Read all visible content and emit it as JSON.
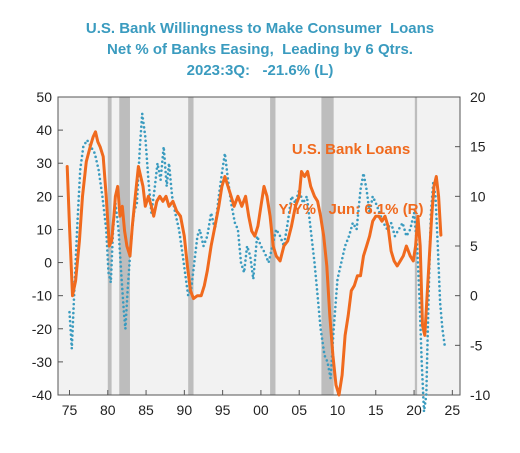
{
  "chart_data": {
    "type": "line",
    "title_lines": [
      "U.S. Bank Willingness to Make Consumer  Loans",
      "Net % of Banks Easing,  Leading by 6 Qtrs.",
      "2023:3Q:   -21.6% (L)"
    ],
    "annotation_lines": [
      "U.S. Bank Loans",
      "Y/Y%   Jun: 6.1% (R)"
    ],
    "x_tick_labels": [
      "75",
      "80",
      "85",
      "90",
      "95",
      "00",
      "05",
      "10",
      "15",
      "20",
      "25"
    ],
    "x_ticks": [
      1975,
      1980,
      1985,
      1990,
      1995,
      2000,
      2005,
      2010,
      2015,
      2020,
      2025
    ],
    "xlim": [
      1973.5,
      2026
    ],
    "y_left_ticks": [
      50,
      40,
      30,
      20,
      10,
      0,
      -10,
      -20,
      -30,
      -40
    ],
    "y_left_lim": [
      -40,
      50
    ],
    "y_right_ticks": [
      20,
      15,
      10,
      5,
      0,
      -5,
      -10
    ],
    "y_right_lim": [
      -10,
      20
    ],
    "recessions": [
      [
        1980.0,
        1980.5
      ],
      [
        1981.5,
        1982.9
      ],
      [
        1990.5,
        1991.2
      ],
      [
        2001.2,
        2001.9
      ],
      [
        2007.9,
        2009.5
      ],
      [
        2020.1,
        2020.4
      ]
    ],
    "colors": {
      "willingness": "#3a9bbf",
      "loans": "#f06a1e",
      "recession": "#bdbdbd",
      "title": "#3a9bbf"
    },
    "series": [
      {
        "axis": "left",
        "style": "dotted",
        "points": [
          [
            1975.0,
            -15
          ],
          [
            1975.3,
            -26
          ],
          [
            1975.6,
            -10
          ],
          [
            1976.0,
            10
          ],
          [
            1976.4,
            28
          ],
          [
            1976.8,
            35
          ],
          [
            1977.3,
            37
          ],
          [
            1977.8,
            35
          ],
          [
            1978.3,
            33
          ],
          [
            1978.8,
            28
          ],
          [
            1979.3,
            20
          ],
          [
            1979.8,
            10
          ],
          [
            1980.1,
            -3
          ],
          [
            1980.4,
            -6
          ],
          [
            1980.7,
            10
          ],
          [
            1981.0,
            18
          ],
          [
            1981.4,
            10
          ],
          [
            1981.8,
            -5
          ],
          [
            1982.1,
            -15
          ],
          [
            1982.3,
            -20
          ],
          [
            1982.6,
            -8
          ],
          [
            1983.0,
            5
          ],
          [
            1983.4,
            15
          ],
          [
            1983.8,
            18
          ],
          [
            1984.2,
            35
          ],
          [
            1984.5,
            45
          ],
          [
            1984.9,
            38
          ],
          [
            1985.3,
            25
          ],
          [
            1985.7,
            15
          ],
          [
            1986.1,
            22
          ],
          [
            1986.5,
            30
          ],
          [
            1986.9,
            25
          ],
          [
            1987.3,
            35
          ],
          [
            1987.7,
            23
          ],
          [
            1988.0,
            30
          ],
          [
            1988.4,
            20
          ],
          [
            1988.8,
            15
          ],
          [
            1989.3,
            10
          ],
          [
            1989.8,
            2
          ],
          [
            1990.2,
            -5
          ],
          [
            1990.5,
            -10
          ],
          [
            1990.9,
            -8
          ],
          [
            1991.3,
            0
          ],
          [
            1991.7,
            8
          ],
          [
            1992.0,
            10
          ],
          [
            1992.5,
            5
          ],
          [
            1993.0,
            8
          ],
          [
            1993.5,
            15
          ],
          [
            1994.0,
            10
          ],
          [
            1994.5,
            20
          ],
          [
            1994.9,
            27
          ],
          [
            1995.3,
            33
          ],
          [
            1995.7,
            25
          ],
          [
            1996.1,
            18
          ],
          [
            1996.6,
            12
          ],
          [
            1997.0,
            10
          ],
          [
            1997.4,
            0
          ],
          [
            1997.8,
            -3
          ],
          [
            1998.2,
            5
          ],
          [
            1998.6,
            2
          ],
          [
            1999.0,
            -5
          ],
          [
            1999.5,
            8
          ],
          [
            2000.0,
            5
          ],
          [
            2000.5,
            3
          ],
          [
            2001.0,
            0
          ],
          [
            2001.5,
            5
          ],
          [
            2002.0,
            10
          ],
          [
            2002.5,
            8
          ],
          [
            2003.0,
            5
          ],
          [
            2003.5,
            12
          ],
          [
            2004.0,
            20
          ],
          [
            2004.5,
            18
          ],
          [
            2005.0,
            22
          ],
          [
            2005.5,
            18
          ],
          [
            2006.0,
            20
          ],
          [
            2006.5,
            10
          ],
          [
            2007.0,
            0
          ],
          [
            2007.4,
            -10
          ],
          [
            2007.8,
            -20
          ],
          [
            2008.3,
            -28
          ],
          [
            2008.7,
            -30
          ],
          [
            2009.1,
            -35
          ],
          [
            2009.5,
            -20
          ],
          [
            2010.0,
            -5
          ],
          [
            2010.5,
            0
          ],
          [
            2011.0,
            5
          ],
          [
            2011.5,
            8
          ],
          [
            2012.0,
            12
          ],
          [
            2012.5,
            10
          ],
          [
            2013.0,
            22
          ],
          [
            2013.4,
            27
          ],
          [
            2013.8,
            22
          ],
          [
            2014.2,
            15
          ],
          [
            2014.6,
            20
          ],
          [
            2015.0,
            18
          ],
          [
            2015.5,
            15
          ],
          [
            2016.0,
            12
          ],
          [
            2016.5,
            10
          ],
          [
            2017.0,
            12
          ],
          [
            2017.5,
            8
          ],
          [
            2018.0,
            10
          ],
          [
            2018.5,
            12
          ],
          [
            2019.0,
            8
          ],
          [
            2019.5,
            10
          ],
          [
            2020.0,
            15
          ],
          [
            2020.4,
            5
          ],
          [
            2020.7,
            -10
          ],
          [
            2021.0,
            -30
          ],
          [
            2021.3,
            -45
          ],
          [
            2021.6,
            -40
          ],
          [
            2021.9,
            -10
          ],
          [
            2022.2,
            15
          ],
          [
            2022.5,
            24
          ],
          [
            2022.8,
            20
          ],
          [
            2023.1,
            5
          ],
          [
            2023.4,
            -12
          ],
          [
            2023.7,
            -20
          ],
          [
            2024.0,
            -25
          ]
        ]
      },
      {
        "axis": "right",
        "style": "solid",
        "points": [
          [
            1974.7,
            13
          ],
          [
            1975.0,
            7
          ],
          [
            1975.4,
            0
          ],
          [
            1975.8,
            1.5
          ],
          [
            1976.3,
            5.5
          ],
          [
            1976.7,
            10
          ],
          [
            1977.2,
            13.5
          ],
          [
            1977.7,
            15
          ],
          [
            1978.1,
            16
          ],
          [
            1978.4,
            16.5
          ],
          [
            1978.7,
            15.5
          ],
          [
            1979.0,
            15
          ],
          [
            1979.4,
            14
          ],
          [
            1979.8,
            10
          ],
          [
            1980.2,
            5
          ],
          [
            1980.5,
            5.5
          ],
          [
            1980.8,
            8
          ],
          [
            1981.0,
            10
          ],
          [
            1981.3,
            11
          ],
          [
            1981.6,
            8
          ],
          [
            1981.9,
            9
          ],
          [
            1982.2,
            6.5
          ],
          [
            1982.5,
            5
          ],
          [
            1982.9,
            4
          ],
          [
            1983.2,
            7
          ],
          [
            1983.6,
            10
          ],
          [
            1984.0,
            13
          ],
          [
            1984.3,
            12
          ],
          [
            1984.6,
            11
          ],
          [
            1984.9,
            9
          ],
          [
            1985.3,
            10
          ],
          [
            1985.7,
            9
          ],
          [
            1986.0,
            8
          ],
          [
            1986.4,
            9.5
          ],
          [
            1986.8,
            10
          ],
          [
            1987.2,
            9.5
          ],
          [
            1987.6,
            10
          ],
          [
            1988.0,
            9
          ],
          [
            1988.5,
            9.5
          ],
          [
            1989.0,
            8.5
          ],
          [
            1989.5,
            8
          ],
          [
            1990.0,
            6
          ],
          [
            1990.4,
            3
          ],
          [
            1990.8,
            0.5
          ],
          [
            1991.2,
            -0.3
          ],
          [
            1991.7,
            0
          ],
          [
            1992.2,
            0
          ],
          [
            1992.6,
            1
          ],
          [
            1993.0,
            2.5
          ],
          [
            1993.5,
            5
          ],
          [
            1994.0,
            7
          ],
          [
            1994.5,
            9
          ],
          [
            1994.9,
            11
          ],
          [
            1995.3,
            12
          ],
          [
            1995.7,
            11
          ],
          [
            1996.1,
            10
          ],
          [
            1996.5,
            9
          ],
          [
            1997.0,
            10
          ],
          [
            1997.5,
            9
          ],
          [
            1998.0,
            10
          ],
          [
            1998.4,
            8
          ],
          [
            1998.8,
            6.5
          ],
          [
            1999.2,
            6
          ],
          [
            1999.6,
            7
          ],
          [
            2000.0,
            9
          ],
          [
            2000.4,
            11
          ],
          [
            2000.8,
            10
          ],
          [
            2001.2,
            8
          ],
          [
            2001.6,
            5
          ],
          [
            2002.0,
            4
          ],
          [
            2002.5,
            3.5
          ],
          [
            2003.0,
            5
          ],
          [
            2003.5,
            5.5
          ],
          [
            2004.0,
            7
          ],
          [
            2004.5,
            9
          ],
          [
            2005.0,
            10
          ],
          [
            2005.3,
            12.5
          ],
          [
            2005.7,
            12
          ],
          [
            2006.1,
            12.5
          ],
          [
            2006.5,
            11
          ],
          [
            2007.0,
            10
          ],
          [
            2007.4,
            9.5
          ],
          [
            2007.8,
            8
          ],
          [
            2008.2,
            6
          ],
          [
            2008.6,
            3
          ],
          [
            2009.0,
            -2
          ],
          [
            2009.4,
            -6
          ],
          [
            2009.8,
            -9
          ],
          [
            2010.2,
            -10
          ],
          [
            2010.6,
            -8
          ],
          [
            2011.0,
            -4
          ],
          [
            2011.4,
            -2
          ],
          [
            2011.8,
            0.5
          ],
          [
            2012.2,
            1
          ],
          [
            2012.6,
            2
          ],
          [
            2013.0,
            2
          ],
          [
            2013.4,
            4
          ],
          [
            2013.8,
            5
          ],
          [
            2014.2,
            6
          ],
          [
            2014.6,
            7.5
          ],
          [
            2015.0,
            8
          ],
          [
            2015.4,
            8
          ],
          [
            2015.8,
            7.5
          ],
          [
            2016.2,
            8
          ],
          [
            2016.6,
            7
          ],
          [
            2017.0,
            4.5
          ],
          [
            2017.4,
            3.5
          ],
          [
            2017.8,
            3
          ],
          [
            2018.2,
            3.5
          ],
          [
            2018.6,
            4
          ],
          [
            2019.0,
            5
          ],
          [
            2019.5,
            4
          ],
          [
            2019.9,
            3.5
          ],
          [
            2020.2,
            5
          ],
          [
            2020.5,
            8
          ],
          [
            2020.8,
            5
          ],
          [
            2021.1,
            -3
          ],
          [
            2021.4,
            -4
          ],
          [
            2021.7,
            0
          ],
          [
            2022.0,
            4
          ],
          [
            2022.3,
            8
          ],
          [
            2022.6,
            11
          ],
          [
            2022.9,
            12
          ],
          [
            2023.2,
            10
          ],
          [
            2023.5,
            6.1
          ]
        ]
      }
    ]
  }
}
